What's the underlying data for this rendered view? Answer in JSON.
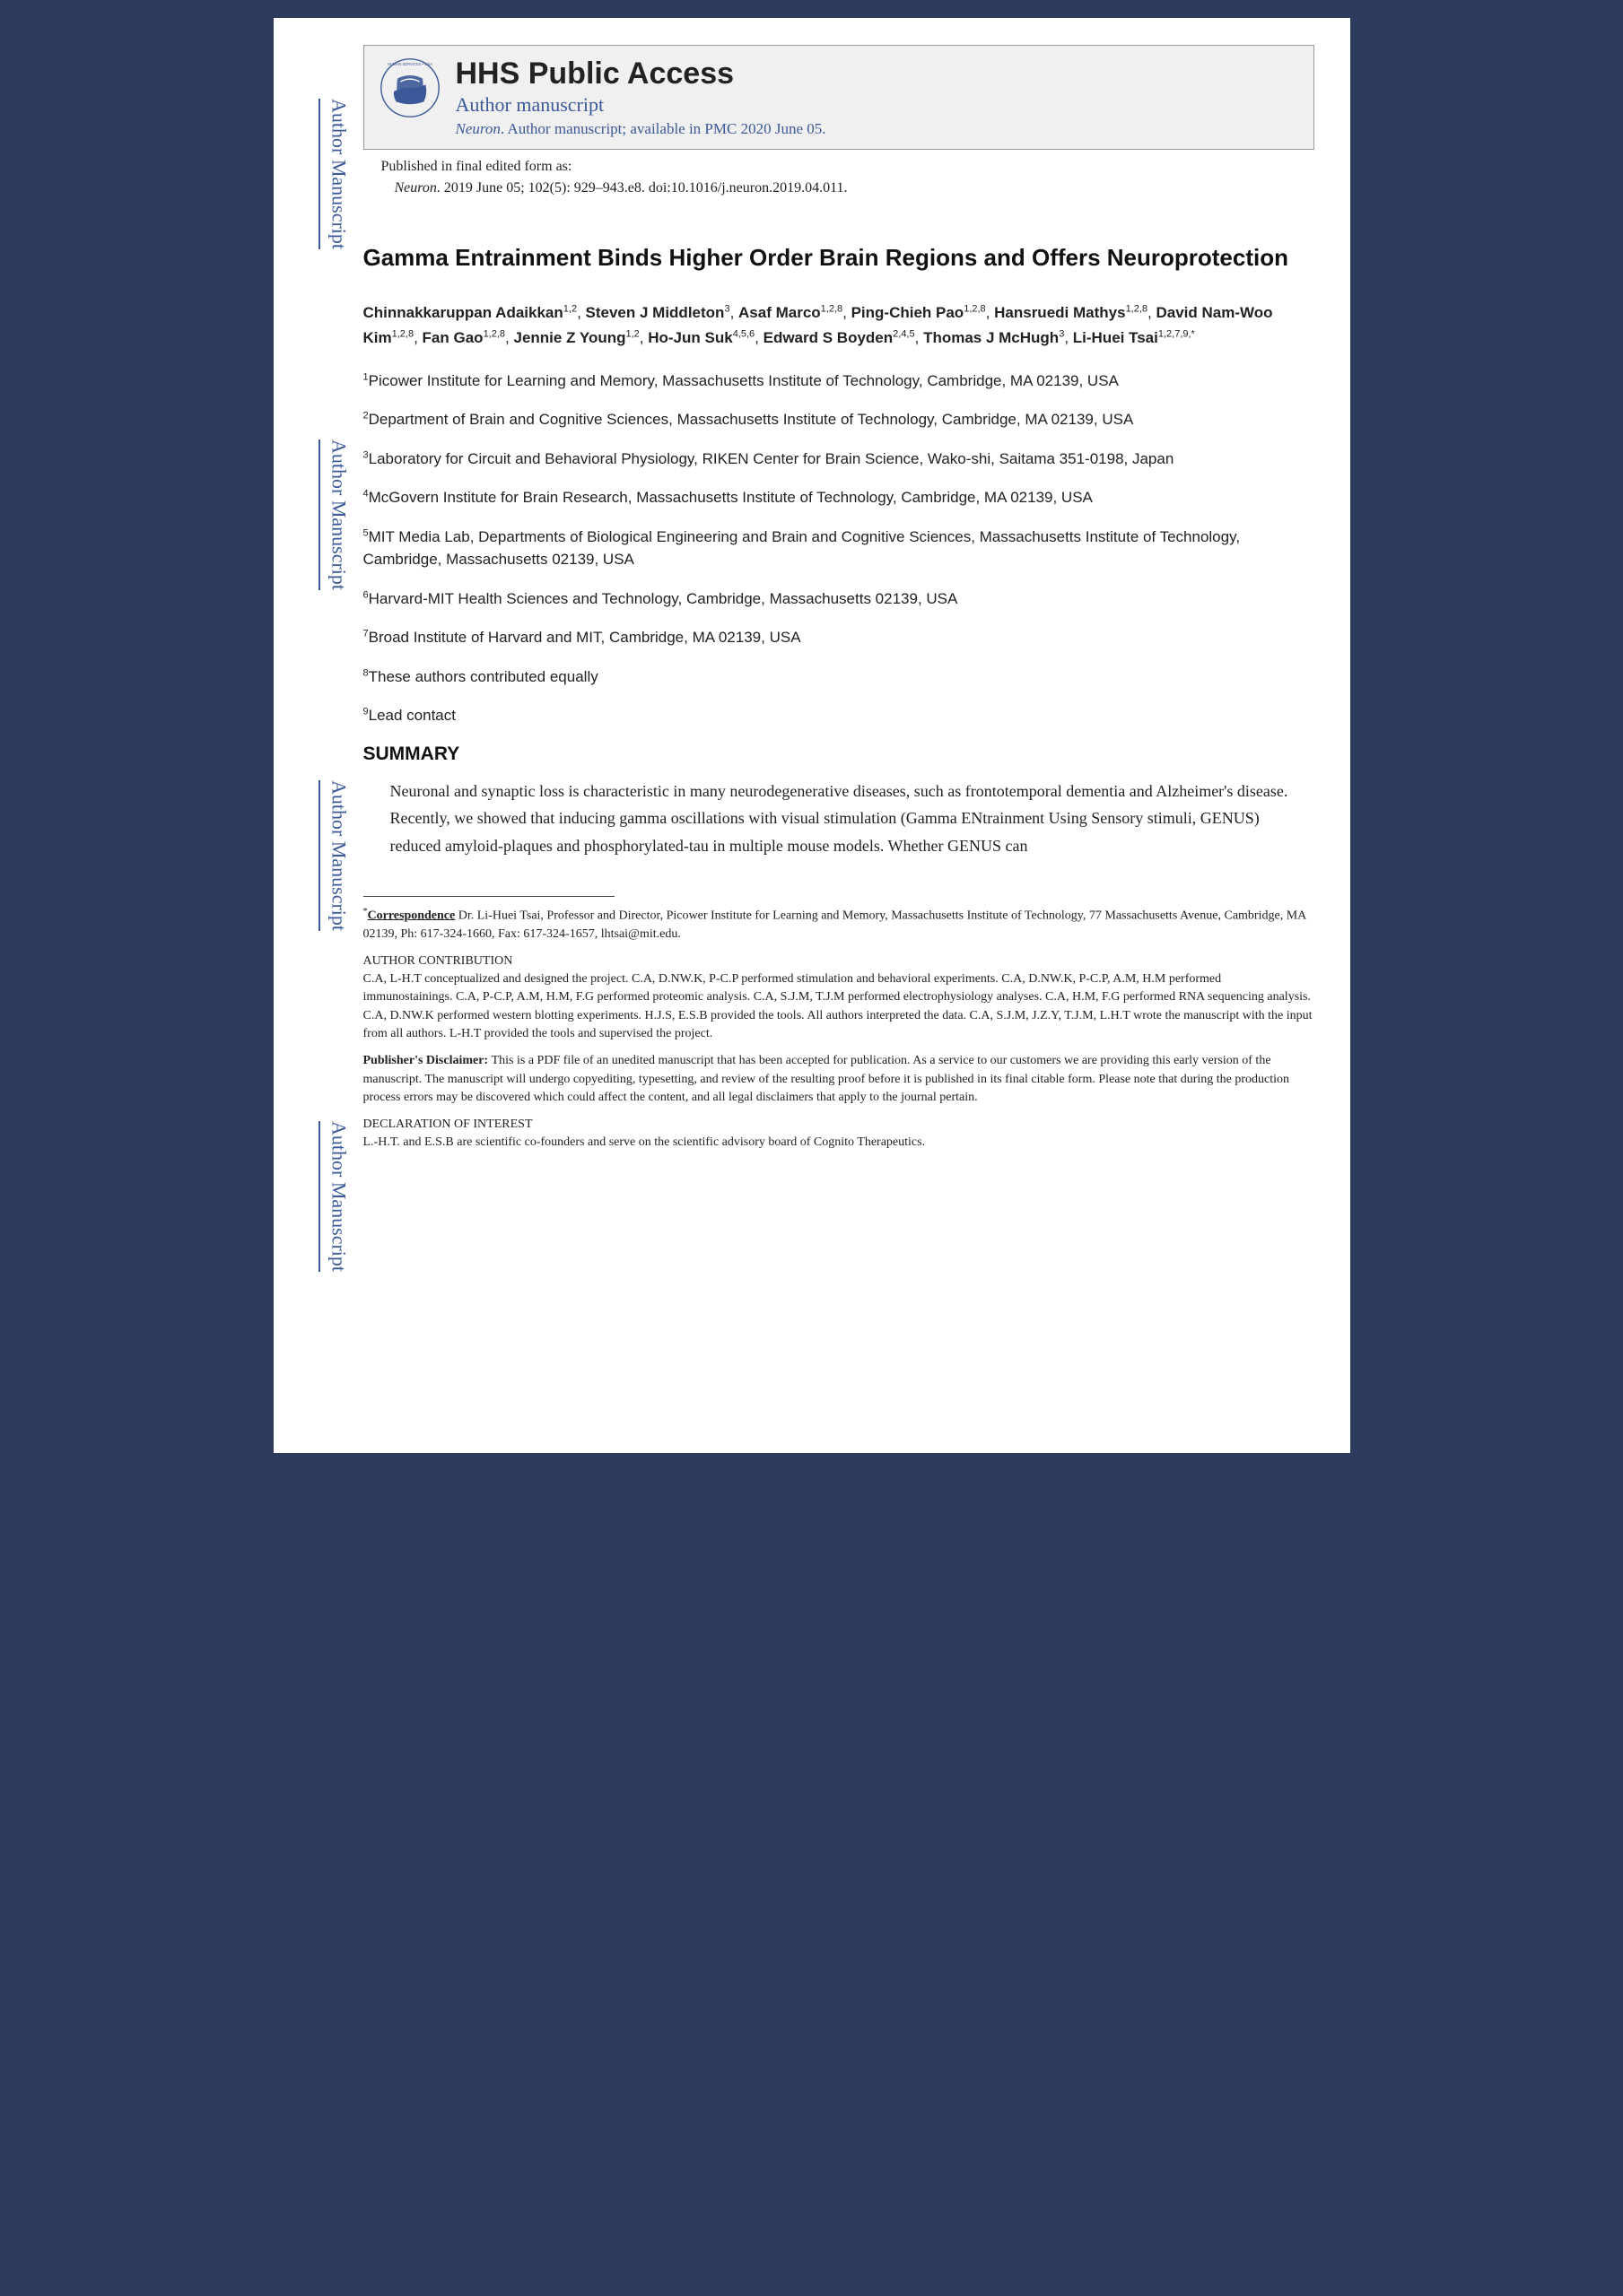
{
  "watermark": "Author Manuscript",
  "header": {
    "title": "HHS Public Access",
    "subtitle": "Author manuscript",
    "journal": "Neuron",
    "availability": ". Author manuscript; available in PMC 2020 June 05."
  },
  "pubinfo": "Published in final edited form as:",
  "citation_journal": "Neuron",
  "citation_rest": ". 2019 June 05; 102(5): 929–943.e8. doi:10.1016/j.neuron.2019.04.011.",
  "article_title": "Gamma Entrainment Binds Higher Order Brain Regions and Offers Neuroprotection",
  "authors": [
    {
      "name": "Chinnakkaruppan Adaikkan",
      "sup": "1,2"
    },
    {
      "name": "Steven J Middleton",
      "sup": "3"
    },
    {
      "name": "Asaf Marco",
      "sup": "1,2,8"
    },
    {
      "name": "Ping-Chieh Pao",
      "sup": "1,2,8"
    },
    {
      "name": "Hansruedi Mathys",
      "sup": "1,2,8"
    },
    {
      "name": "David Nam-Woo Kim",
      "sup": "1,2,8"
    },
    {
      "name": "Fan Gao",
      "sup": "1,2,8"
    },
    {
      "name": "Jennie Z Young",
      "sup": "1,2"
    },
    {
      "name": "Ho-Jun Suk",
      "sup": "4,5,6"
    },
    {
      "name": "Edward S Boyden",
      "sup": "2,4,5"
    },
    {
      "name": "Thomas J McHugh",
      "sup": "3"
    },
    {
      "name": "Li-Huei Tsai",
      "sup": "1,2,7,9,*"
    }
  ],
  "affiliations": [
    {
      "n": "1",
      "text": "Picower Institute for Learning and Memory, Massachusetts Institute of Technology, Cambridge, MA 02139, USA"
    },
    {
      "n": "2",
      "text": "Department of Brain and Cognitive Sciences, Massachusetts Institute of Technology, Cambridge, MA 02139, USA"
    },
    {
      "n": "3",
      "text": "Laboratory for Circuit and Behavioral Physiology, RIKEN Center for Brain Science, Wako-shi, Saitama 351-0198, Japan"
    },
    {
      "n": "4",
      "text": "McGovern Institute for Brain Research, Massachusetts Institute of Technology, Cambridge, MA 02139, USA"
    },
    {
      "n": "5",
      "text": "MIT Media Lab, Departments of Biological Engineering and Brain and Cognitive Sciences, Massachusetts Institute of Technology, Cambridge, Massachusetts 02139, USA"
    },
    {
      "n": "6",
      "text": "Harvard-MIT Health Sciences and Technology, Cambridge, Massachusetts 02139, USA"
    },
    {
      "n": "7",
      "text": "Broad Institute of Harvard and MIT, Cambridge, MA 02139, USA"
    },
    {
      "n": "8",
      "text": "These authors contributed equally"
    },
    {
      "n": "9",
      "text": "Lead contact"
    }
  ],
  "summary_heading": "SUMMARY",
  "summary_text": "Neuronal and synaptic loss is characteristic in many neurodegenerative diseases, such as frontotemporal dementia and Alzheimer's disease. Recently, we showed that inducing gamma oscillations with visual stimulation (Gamma ENtrainment Using Sensory stimuli, GENUS) reduced amyloid-plaques and phosphorylated-tau in multiple mouse models. Whether GENUS can",
  "footnotes": {
    "correspondence_label": "Correspondence",
    "correspondence_text": " Dr. Li-Huei Tsai, Professor and Director, Picower Institute for Learning and Memory, Massachusetts Institute of Technology, 77 Massachusetts Avenue, Cambridge, MA 02139, Ph: 617-324-1660, Fax: 617-324-1657, lhtsai@mit.edu.",
    "author_contrib_label": "AUTHOR CONTRIBUTION",
    "author_contrib_text": "C.A, L-H.T conceptualized and designed the project. C.A, D.NW.K, P-C.P performed stimulation and behavioral experiments. C.A, D.NW.K, P-C.P, A.M, H.M performed immunostainings. C.A, P-C.P, A.M, H.M, F.G performed proteomic analysis. C.A, S.J.M, T.J.M performed electrophysiology analyses. C.A, H.M, F.G performed RNA sequencing analysis. C.A, D.NW.K performed western blotting experiments. H.J.S, E.S.B provided the tools. All authors interpreted the data. C.A, S.J.M, J.Z.Y, T.J.M, L.H.T wrote the manuscript with the input from all authors. L-H.T provided the tools and supervised the project.",
    "disclaimer_label": "Publisher's Disclaimer: ",
    "disclaimer_text": "This is a PDF file of an unedited manuscript that has been accepted for publication. As a service to our customers we are providing this early version of the manuscript. The manuscript will undergo copyediting, typesetting, and review of the resulting proof before it is published in its final citable form. Please note that during the production process errors may be discovered which could affect the content, and all legal disclaimers that apply to the journal pertain.",
    "declaration_label": "DECLARATION OF INTEREST",
    "declaration_text": "L.-H.T. and E.S.B are scientific co-founders and serve on the scientific advisory board of Cognito Therapeutics."
  }
}
